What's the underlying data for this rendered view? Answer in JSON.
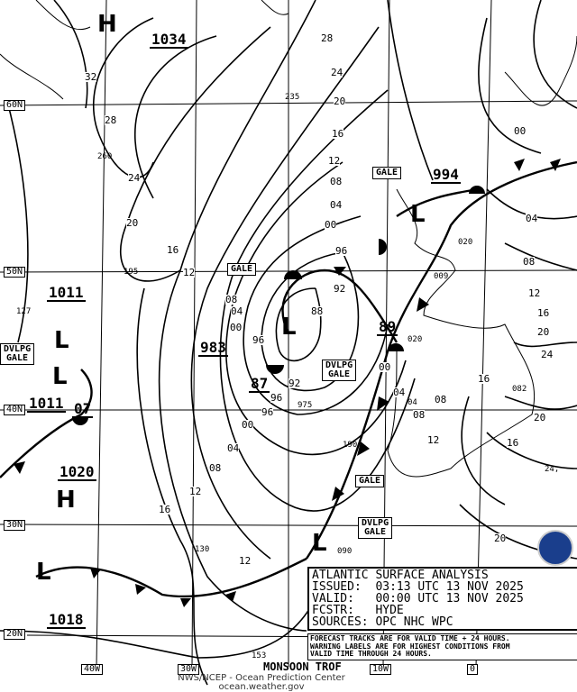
{
  "grid_labels": {
    "lat": [
      "60N",
      "50N",
      "40N",
      "30N",
      "20N"
    ],
    "lon": [
      "40W",
      "30W",
      "10W",
      "0"
    ]
  },
  "centers": [
    {
      "symbol": "H",
      "value": "1034"
    },
    {
      "symbol": "L",
      "value": "994"
    },
    {
      "symbol": "L",
      "value": "983"
    },
    {
      "symbol": "L",
      "value": "87"
    },
    {
      "symbol": "L",
      "value": "89"
    },
    {
      "symbol": "L",
      "value": "1011"
    },
    {
      "symbol": "L",
      "value": "1011"
    },
    {
      "symbol": "L",
      "value": "07"
    },
    {
      "symbol": "H",
      "value": "1020"
    },
    {
      "symbol": "L",
      "value": "1018"
    }
  ],
  "isobar_labels": [
    "32",
    "28",
    "24",
    "20",
    "16",
    "12",
    "08",
    "04",
    "00",
    "96",
    "92",
    "88",
    "28",
    "24",
    "20",
    "16",
    "12",
    "08",
    "04",
    "00",
    "96",
    "92",
    "96",
    "00",
    "04",
    "08",
    "12",
    "16",
    "12",
    "08",
    "04",
    "00",
    "96",
    "00",
    "04",
    "08",
    "12",
    "16",
    "20",
    "24",
    "16",
    "20",
    "08",
    "12",
    "16",
    "20"
  ],
  "warnings": [
    "GALE",
    "GALE",
    "DVLPG\nGALE",
    "DVLPG\nGALE",
    "GALE",
    "DVLPG\nGALE"
  ],
  "station_values": [
    "235",
    "260",
    "195",
    "127",
    "975",
    "190",
    "130",
    "153",
    "090",
    "020",
    "009",
    "082",
    "020",
    "04",
    "24,"
  ],
  "monsoon_label": "MONSOON TROF",
  "info_box": {
    "title": "ATLANTIC SURFACE ANALYSIS",
    "issued": "ISSUED:  03:13 UTC 13 NOV 2025",
    "valid": "VALID:   00:00 UTC 13 NOV 2025",
    "forecaster": "FCSTR:   HYDE",
    "sources": "SOURCES: OPC NHC WPC"
  },
  "note": [
    "FORECAST TRACKS ARE FOR VALID TIME + 24 HOURS.",
    "WARNING LABELS ARE FOR HIGHEST CONDITIONS FROM",
    "VALID TIME THROUGH 24 HOURS."
  ],
  "footer": [
    "NWS/NCEP - Ocean Prediction Center",
    "ocean.weather.gov"
  ],
  "colors": {
    "front": "#000000",
    "logo": "#1a3e8c"
  }
}
